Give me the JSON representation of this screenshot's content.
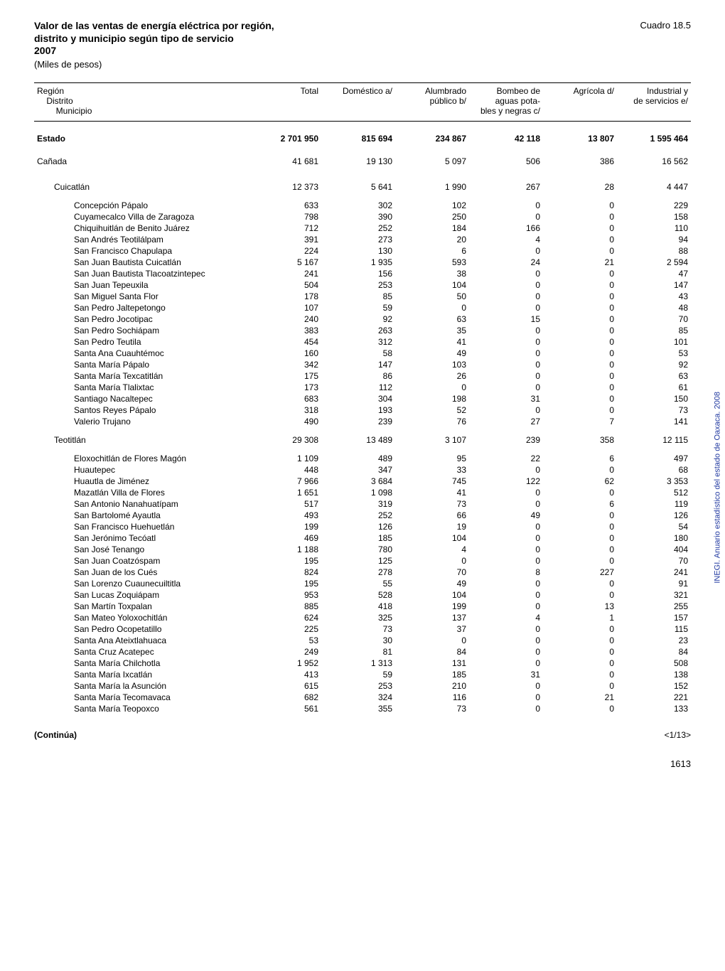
{
  "title_lines": [
    "Valor de las ventas de energía eléctrica por región,",
    "distrito y municipio según tipo de servicio",
    "2007"
  ],
  "unit_label": "(Miles de pesos)",
  "cuadro_label": "Cuadro 18.5",
  "columns": {
    "name_lines": [
      "Región",
      "Distrito",
      "Municipio"
    ],
    "total": "Total",
    "domestico": "Doméstico a/",
    "alumbrado_l1": "Alumbrado",
    "alumbrado_l2": "público b/",
    "bombeo_l1": "Bombeo de",
    "bombeo_l2": "aguas pota-",
    "bombeo_l3": "bles y negras c/",
    "agricola": "Agrícola d/",
    "industrial_l1": "Industrial y",
    "industrial_l2": "de servicios e/"
  },
  "rows": [
    {
      "type": "bold",
      "indent": 0,
      "name": "Estado",
      "v": [
        "2 701 950",
        "815 694",
        "234 867",
        "42 118",
        "13 807",
        "1 595 464"
      ]
    },
    {
      "type": "plain",
      "indent": 0,
      "name": "Cañada",
      "v": [
        "41 681",
        "19 130",
        "5 097",
        "506",
        "386",
        "16 562"
      ]
    },
    {
      "type": "plain",
      "indent": 1,
      "name": "Cuicatlán",
      "v": [
        "12 373",
        "5 641",
        "1 990",
        "267",
        "28",
        "4 447"
      ]
    },
    {
      "type": "plain",
      "indent": 2,
      "name": "Concepción Pápalo",
      "v": [
        "633",
        "302",
        "102",
        "0",
        "0",
        "229"
      ]
    },
    {
      "type": "plain",
      "indent": 2,
      "name": "Cuyamecalco Villa de Zaragoza",
      "v": [
        "798",
        "390",
        "250",
        "0",
        "0",
        "158"
      ]
    },
    {
      "type": "plain",
      "indent": 2,
      "name": "Chiquihuitlán de Benito Juárez",
      "v": [
        "712",
        "252",
        "184",
        "166",
        "0",
        "110"
      ]
    },
    {
      "type": "plain",
      "indent": 2,
      "name": "San Andrés Teotilálpam",
      "v": [
        "391",
        "273",
        "20",
        "4",
        "0",
        "94"
      ]
    },
    {
      "type": "plain",
      "indent": 2,
      "name": "San Francisco Chapulapa",
      "v": [
        "224",
        "130",
        "6",
        "0",
        "0",
        "88"
      ]
    },
    {
      "type": "plain",
      "indent": 2,
      "name": "San Juan Bautista Cuicatlán",
      "v": [
        "5 167",
        "1 935",
        "593",
        "24",
        "21",
        "2 594"
      ]
    },
    {
      "type": "plain",
      "indent": 2,
      "name": "San Juan Bautista Tlacoatzintepec",
      "v": [
        "241",
        "156",
        "38",
        "0",
        "0",
        "47"
      ]
    },
    {
      "type": "plain",
      "indent": 2,
      "name": "San Juan Tepeuxila",
      "v": [
        "504",
        "253",
        "104",
        "0",
        "0",
        "147"
      ]
    },
    {
      "type": "plain",
      "indent": 2,
      "name": "San Miguel Santa Flor",
      "v": [
        "178",
        "85",
        "50",
        "0",
        "0",
        "43"
      ]
    },
    {
      "type": "plain",
      "indent": 2,
      "name": "San Pedro Jaltepetongo",
      "v": [
        "107",
        "59",
        "0",
        "0",
        "0",
        "48"
      ]
    },
    {
      "type": "plain",
      "indent": 2,
      "name": "San Pedro Jocotipac",
      "v": [
        "240",
        "92",
        "63",
        "15",
        "0",
        "70"
      ]
    },
    {
      "type": "plain",
      "indent": 2,
      "name": "San Pedro Sochiápam",
      "v": [
        "383",
        "263",
        "35",
        "0",
        "0",
        "85"
      ]
    },
    {
      "type": "plain",
      "indent": 2,
      "name": "San Pedro Teutila",
      "v": [
        "454",
        "312",
        "41",
        "0",
        "0",
        "101"
      ]
    },
    {
      "type": "plain",
      "indent": 2,
      "name": "Santa Ana Cuauhtémoc",
      "v": [
        "160",
        "58",
        "49",
        "0",
        "0",
        "53"
      ]
    },
    {
      "type": "plain",
      "indent": 2,
      "name": "Santa María Pápalo",
      "v": [
        "342",
        "147",
        "103",
        "0",
        "0",
        "92"
      ]
    },
    {
      "type": "plain",
      "indent": 2,
      "name": "Santa María Texcatitlán",
      "v": [
        "175",
        "86",
        "26",
        "0",
        "0",
        "63"
      ]
    },
    {
      "type": "plain",
      "indent": 2,
      "name": "Santa María Tlalixtac",
      "v": [
        "173",
        "112",
        "0",
        "0",
        "0",
        "61"
      ]
    },
    {
      "type": "plain",
      "indent": 2,
      "name": "Santiago Nacaltepec",
      "v": [
        "683",
        "304",
        "198",
        "31",
        "0",
        "150"
      ]
    },
    {
      "type": "plain",
      "indent": 2,
      "name": "Santos Reyes Pápalo",
      "v": [
        "318",
        "193",
        "52",
        "0",
        "0",
        "73"
      ]
    },
    {
      "type": "plain",
      "indent": 2,
      "name": "Valerio Trujano",
      "v": [
        "490",
        "239",
        "76",
        "27",
        "7",
        "141"
      ]
    },
    {
      "type": "plain",
      "indent": 1,
      "name": "Teotitlán",
      "v": [
        "29 308",
        "13 489",
        "3 107",
        "239",
        "358",
        "12 115"
      ]
    },
    {
      "type": "plain",
      "indent": 2,
      "name": "Eloxochitlán de Flores Magón",
      "v": [
        "1 109",
        "489",
        "95",
        "22",
        "6",
        "497"
      ]
    },
    {
      "type": "plain",
      "indent": 2,
      "name": "Huautepec",
      "v": [
        "448",
        "347",
        "33",
        "0",
        "0",
        "68"
      ]
    },
    {
      "type": "plain",
      "indent": 2,
      "name": "Huautla de Jiménez",
      "v": [
        "7 966",
        "3 684",
        "745",
        "122",
        "62",
        "3 353"
      ]
    },
    {
      "type": "plain",
      "indent": 2,
      "name": "Mazatlán Villa de Flores",
      "v": [
        "1 651",
        "1 098",
        "41",
        "0",
        "0",
        "512"
      ]
    },
    {
      "type": "plain",
      "indent": 2,
      "name": "San Antonio Nanahuatípam",
      "v": [
        "517",
        "319",
        "73",
        "0",
        "6",
        "119"
      ]
    },
    {
      "type": "plain",
      "indent": 2,
      "name": "San Bartolomé Ayautla",
      "v": [
        "493",
        "252",
        "66",
        "49",
        "0",
        "126"
      ]
    },
    {
      "type": "plain",
      "indent": 2,
      "name": "San Francisco Huehuetlán",
      "v": [
        "199",
        "126",
        "19",
        "0",
        "0",
        "54"
      ]
    },
    {
      "type": "plain",
      "indent": 2,
      "name": "San Jerónimo Tecóatl",
      "v": [
        "469",
        "185",
        "104",
        "0",
        "0",
        "180"
      ]
    },
    {
      "type": "plain",
      "indent": 2,
      "name": "San José Tenango",
      "v": [
        "1 188",
        "780",
        "4",
        "0",
        "0",
        "404"
      ]
    },
    {
      "type": "plain",
      "indent": 2,
      "name": "San Juan Coatzóspam",
      "v": [
        "195",
        "125",
        "0",
        "0",
        "0",
        "70"
      ]
    },
    {
      "type": "plain",
      "indent": 2,
      "name": "San Juan de los Cués",
      "v": [
        "824",
        "278",
        "70",
        "8",
        "227",
        "241"
      ]
    },
    {
      "type": "plain",
      "indent": 2,
      "name": "San Lorenzo Cuaunecuiltitla",
      "v": [
        "195",
        "55",
        "49",
        "0",
        "0",
        "91"
      ]
    },
    {
      "type": "plain",
      "indent": 2,
      "name": "San Lucas Zoquiápam",
      "v": [
        "953",
        "528",
        "104",
        "0",
        "0",
        "321"
      ]
    },
    {
      "type": "plain",
      "indent": 2,
      "name": "San Martín Toxpalan",
      "v": [
        "885",
        "418",
        "199",
        "0",
        "13",
        "255"
      ]
    },
    {
      "type": "plain",
      "indent": 2,
      "name": "San Mateo Yoloxochitlán",
      "v": [
        "624",
        "325",
        "137",
        "4",
        "1",
        "157"
      ]
    },
    {
      "type": "plain",
      "indent": 2,
      "name": "San Pedro Ocopetatillo",
      "v": [
        "225",
        "73",
        "37",
        "0",
        "0",
        "115"
      ]
    },
    {
      "type": "plain",
      "indent": 2,
      "name": "Santa Ana Ateixtlahuaca",
      "v": [
        "53",
        "30",
        "0",
        "0",
        "0",
        "23"
      ]
    },
    {
      "type": "plain",
      "indent": 2,
      "name": "Santa Cruz Acatepec",
      "v": [
        "249",
        "81",
        "84",
        "0",
        "0",
        "84"
      ]
    },
    {
      "type": "plain",
      "indent": 2,
      "name": "Santa María Chilchotla",
      "v": [
        "1 952",
        "1 313",
        "131",
        "0",
        "0",
        "508"
      ]
    },
    {
      "type": "plain",
      "indent": 2,
      "name": "Santa María Ixcatlán",
      "v": [
        "413",
        "59",
        "185",
        "31",
        "0",
        "138"
      ]
    },
    {
      "type": "plain",
      "indent": 2,
      "name": "Santa María la Asunción",
      "v": [
        "615",
        "253",
        "210",
        "0",
        "0",
        "152"
      ]
    },
    {
      "type": "plain",
      "indent": 2,
      "name": "Santa María Tecomavaca",
      "v": [
        "682",
        "324",
        "116",
        "0",
        "21",
        "221"
      ]
    },
    {
      "type": "plain",
      "indent": 2,
      "name": "Santa María Teopoxco",
      "v": [
        "561",
        "355",
        "73",
        "0",
        "0",
        "133"
      ]
    }
  ],
  "continua_label": "(Continúa)",
  "page_marker": "<1/13>",
  "side_text": "INEGI. Anuario estadístico del estado de Oaxaca. 2008",
  "pagenum": "1613"
}
